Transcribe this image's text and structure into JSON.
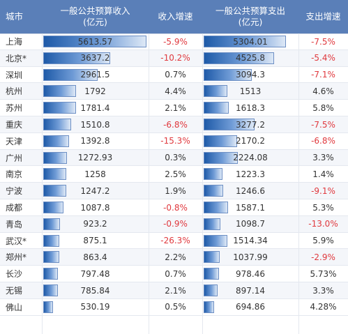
{
  "header": {
    "city": "城市",
    "revenue_line1": "一般公共预算收入",
    "revenue_line2": "(亿元)",
    "revenue_growth": "收入增速",
    "expenditure_line1": "一般公共预算支出",
    "expenditure_line2": "(亿元)",
    "expenditure_growth": "支出增速"
  },
  "colors": {
    "header_bg": "#5a7fb8",
    "negative": "#e0393e",
    "bar_dark": "#1e5aa8",
    "bar_light": "#dde8f6"
  },
  "chart_data": {
    "type": "table",
    "columns": [
      "城市",
      "一般公共预算收入(亿元)",
      "收入增速",
      "一般公共预算支出(亿元)",
      "支出增速"
    ],
    "revenue_bar_max": 5613.57,
    "expenditure_bar_max": 5304.01,
    "rows": [
      {
        "city": "上海",
        "revenue": "5613.57",
        "revenue_growth": "-5.9%",
        "expenditure": "5304.01",
        "expenditure_growth": "-7.5%"
      },
      {
        "city": "北京*",
        "revenue": "3637.2",
        "revenue_growth": "-10.2%",
        "expenditure": "4525.8",
        "expenditure_growth": "-5.4%"
      },
      {
        "city": "深圳",
        "revenue": "2961.5",
        "revenue_growth": "0.7%",
        "expenditure": "3094.3",
        "expenditure_growth": "-7.1%"
      },
      {
        "city": "杭州",
        "revenue": "1792",
        "revenue_growth": "4.4%",
        "expenditure": "1513",
        "expenditure_growth": "4.6%"
      },
      {
        "city": "苏州",
        "revenue": "1781.4",
        "revenue_growth": "2.1%",
        "expenditure": "1618.3",
        "expenditure_growth": "5.8%"
      },
      {
        "city": "重庆",
        "revenue": "1510.8",
        "revenue_growth": "-6.8%",
        "expenditure": "3277.2",
        "expenditure_growth": "-7.5%"
      },
      {
        "city": "天津",
        "revenue": "1392.8",
        "revenue_growth": "-15.3%",
        "expenditure": "2170.2",
        "expenditure_growth": "-6.8%"
      },
      {
        "city": "广州",
        "revenue": "1272.93",
        "revenue_growth": "0.3%",
        "expenditure": "2224.08",
        "expenditure_growth": "3.3%"
      },
      {
        "city": "南京",
        "revenue": "1258",
        "revenue_growth": "2.5%",
        "expenditure": "1223.3",
        "expenditure_growth": "1.4%"
      },
      {
        "city": "宁波",
        "revenue": "1247.2",
        "revenue_growth": "1.9%",
        "expenditure": "1246.6",
        "expenditure_growth": "-9.1%"
      },
      {
        "city": "成都",
        "revenue": "1087.8",
        "revenue_growth": "-0.8%",
        "expenditure": "1587.1",
        "expenditure_growth": "5.3%"
      },
      {
        "city": "青岛",
        "revenue": "923.2",
        "revenue_growth": "-0.9%",
        "expenditure": "1098.7",
        "expenditure_growth": "-13.0%"
      },
      {
        "city": "武汉*",
        "revenue": "875.1",
        "revenue_growth": "-26.3%",
        "expenditure": "1514.34",
        "expenditure_growth": "5.9%"
      },
      {
        "city": "郑州*",
        "revenue": "863.4",
        "revenue_growth": "2.2%",
        "expenditure": "1037.99",
        "expenditure_growth": "-2.9%"
      },
      {
        "city": "长沙",
        "revenue": "797.48",
        "revenue_growth": "0.7%",
        "expenditure": "978.46",
        "expenditure_growth": "5.73%"
      },
      {
        "city": "无锡",
        "revenue": "785.84",
        "revenue_growth": "2.1%",
        "expenditure": "897.14",
        "expenditure_growth": "3.3%"
      },
      {
        "city": "佛山",
        "revenue": "530.19",
        "revenue_growth": "0.5%",
        "expenditure": "694.86",
        "expenditure_growth": "4.28%"
      }
    ]
  }
}
